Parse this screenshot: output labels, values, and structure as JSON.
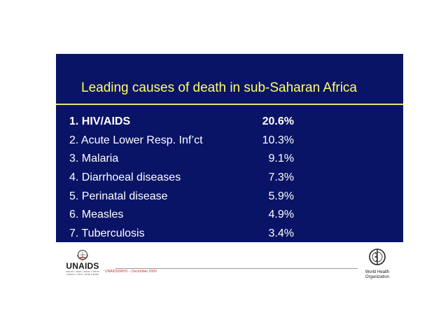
{
  "slide": {
    "title": "Leading causes of death in sub-Saharan Africa",
    "causes": [
      {
        "label": "1. HIV/AIDS",
        "value": "20.6%"
      },
      {
        "label": "2. Acute Lower Resp. Inf’ct",
        "value": "10.3%"
      },
      {
        "label": "3. Malaria",
        "value": "9.1%"
      },
      {
        "label": "4. Diarrhoeal diseases",
        "value": "7.3%"
      },
      {
        "label": "5. Perinatal disease",
        "value": "5.9%"
      },
      {
        "label": "6. Measles",
        "value": "4.9%"
      },
      {
        "label": "7. Tuberculosis",
        "value": "3.4%"
      }
    ]
  },
  "footer": {
    "unaids_logo_text": "UNAIDS",
    "unaids_subtext": "UNICEF • UNDP • UNFPA • UNDCP UNESCO • WHO • WORLD BANK",
    "who_logo_text": "World Health Organization",
    "reference_text": "UNAIDS/WHO – December 2000"
  },
  "colors": {
    "slide_bg": "#0a1466",
    "title": "#ffff66",
    "text": "#ffffff",
    "rule": "#e8e07a"
  }
}
